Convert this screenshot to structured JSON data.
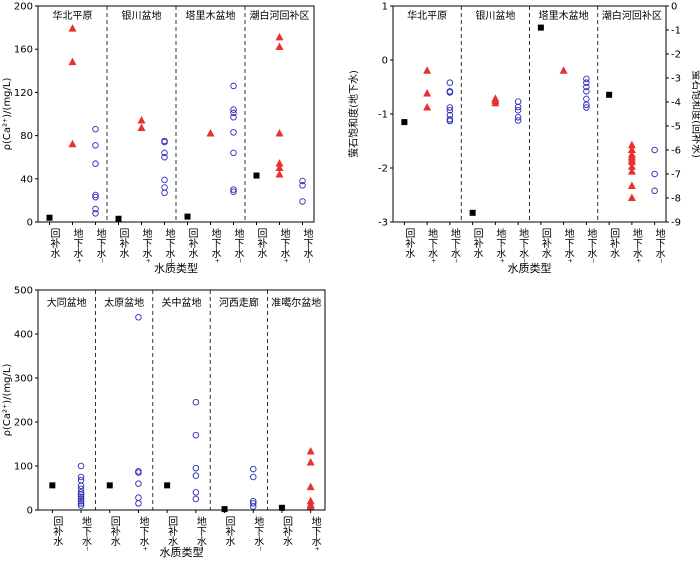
{
  "colors": {
    "recharge": "#000000",
    "groundwater_plus": "#e8312f",
    "groundwater_minus": "#2b2bb8"
  },
  "symbols": {
    "recharge": "square",
    "groundwater_plus": "triangle",
    "groundwater_minus": "circle"
  },
  "chart_data": [
    {
      "type": "scatter",
      "ylabel": "ρ(Ca²⁺)/(mg/L)",
      "xlabel": "水质类型",
      "ylim": [
        0,
        200
      ],
      "yticks": [
        0,
        40,
        80,
        120,
        160,
        200
      ],
      "categories": [
        "回补水",
        "地下水⁺",
        "地下水⁻"
      ],
      "groups": [
        {
          "name": "华北平原",
          "recharge": [
            4
          ],
          "groundwater_plus": [
            179,
            148,
            72
          ],
          "groundwater_minus": [
            86,
            71,
            54,
            25,
            23,
            12,
            8
          ]
        },
        {
          "name": "银川盆地",
          "recharge": [
            3
          ],
          "groundwater_plus": [
            94,
            87
          ],
          "groundwater_minus": [
            75,
            74,
            64,
            60,
            39,
            32,
            27
          ]
        },
        {
          "name": "塔里木盆地",
          "recharge": [
            5
          ],
          "groundwater_plus": [
            82
          ],
          "groundwater_minus": [
            126,
            104,
            101,
            97,
            83,
            64,
            30,
            28
          ]
        },
        {
          "name": "潮白河回补区",
          "recharge": [
            43
          ],
          "groundwater_plus": [
            171,
            162,
            82,
            54,
            50,
            44
          ],
          "groundwater_minus": [
            38,
            34,
            19
          ]
        }
      ]
    },
    {
      "type": "scatter",
      "ylabel": "萤石饱和度(地下水)",
      "ylabel_right": "萤石饱和度(回补水)",
      "xlabel": "水质类型",
      "ylim": [
        -3,
        1
      ],
      "yticks": [
        -3,
        -2,
        -1,
        0,
        1
      ],
      "ylim_right": [
        -9,
        0
      ],
      "yticks_right": [
        -9,
        -8,
        -7,
        -6,
        -5,
        -4,
        -3,
        -2,
        -1,
        0
      ],
      "categories": [
        "回补水",
        "地下水⁺",
        "地下水⁻"
      ],
      "groups": [
        {
          "name": "华北平原",
          "recharge": [
            -1.15
          ],
          "groundwater_plus": [
            -0.2,
            -0.62,
            -0.88
          ],
          "groundwater_minus": [
            -0.42,
            -0.58,
            -0.6,
            -0.88,
            -0.93,
            -1.02,
            -1.1,
            -1.13
          ]
        },
        {
          "name": "银川盆地",
          "recharge": [
            -2.83
          ],
          "groundwater_plus": [
            -0.72,
            -0.76,
            -0.8
          ],
          "groundwater_minus": [
            -0.77,
            -0.87,
            -0.93,
            -1.06,
            -1.12
          ]
        },
        {
          "name": "塔里木盆地",
          "recharge": [
            0.6
          ],
          "groundwater_plus": [
            -0.2
          ],
          "groundwater_minus": [
            -0.35,
            -0.42,
            -0.5,
            -0.58,
            -0.72,
            -0.83,
            -0.88
          ]
        },
        {
          "name": "潮白河回补区",
          "recharge_right": [
            -3.7
          ],
          "groundwater_plus_right": [
            -5.8,
            -6.0,
            -6.2,
            -6.3,
            -6.4,
            -6.5,
            -6.7,
            -6.9,
            -7.5,
            -8.0
          ],
          "groundwater_minus_right": [
            -6.0,
            -7.0,
            -7.7
          ]
        }
      ]
    },
    {
      "type": "scatter",
      "ylabel": "ρ(Ca²⁺)/(mg/L)",
      "xlabel": "水质类型",
      "ylim": [
        0,
        500
      ],
      "yticks": [
        0,
        100,
        200,
        300,
        400,
        500
      ],
      "categories": [
        "回补水",
        "地下水⁻"
      ],
      "groups": [
        {
          "name": "大同盆地",
          "categories": [
            "回补水",
            "地下水⁻"
          ],
          "recharge": [
            56
          ],
          "groundwater_minus": [
            100,
            75,
            68,
            55,
            48,
            40,
            35,
            30,
            25,
            20,
            15,
            10
          ]
        },
        {
          "name": "太原盆地",
          "categories": [
            "回补水",
            "地下水⁺"
          ],
          "recharge": [
            56
          ],
          "groundwater_minus": [
            438,
            88,
            85,
            60,
            28,
            15
          ]
        },
        {
          "name": "关中盆地",
          "categories": [
            "回补水",
            "地下水⁻"
          ],
          "recharge": [
            56
          ],
          "groundwater_minus": [
            245,
            170,
            95,
            78,
            40,
            25
          ]
        },
        {
          "name": "河西走廊",
          "categories": [
            "回补水",
            "地下水⁻"
          ],
          "recharge": [
            2
          ],
          "groundwater_minus": [
            93,
            75,
            20,
            15,
            8
          ]
        },
        {
          "name": "准噶尔盆地",
          "categories": [
            "回补水",
            "地下水⁺"
          ],
          "recharge": [
            5
          ],
          "groundwater_plus": [
            133,
            108,
            52,
            20,
            12,
            8
          ]
        }
      ]
    }
  ]
}
